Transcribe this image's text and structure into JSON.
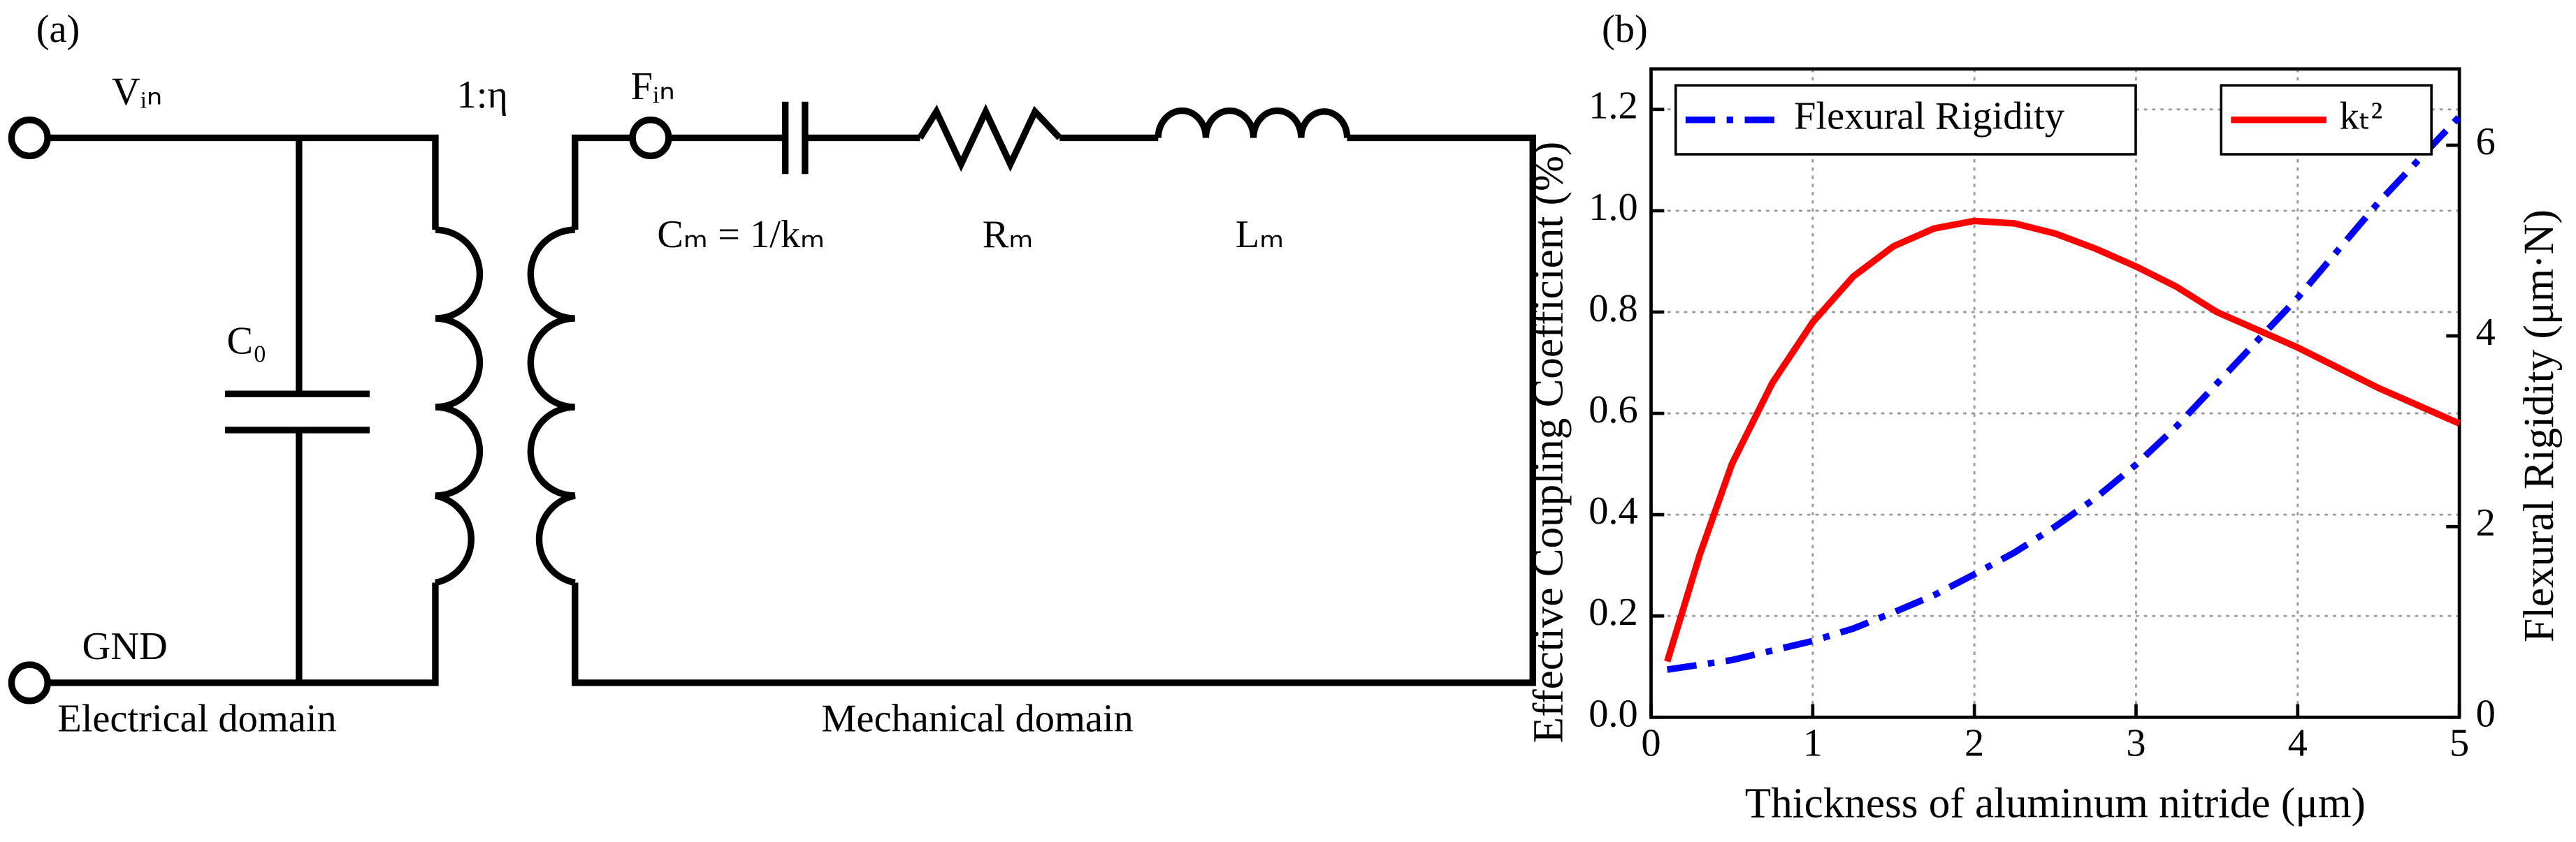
{
  "panel_a": {
    "label": "(a)",
    "v_in": "Vᵢₙ",
    "ratio": "1:η",
    "f_in": "Fᵢₙ",
    "c0": "C₀",
    "cm": "Cₘ = 1/kₘ",
    "rm": "Rₘ",
    "lm": "Lₘ",
    "gnd": "GND",
    "electrical": "Electrical domain",
    "mechanical": "Mechanical domain"
  },
  "chart_data": {
    "type": "line",
    "panel_label": "(b)",
    "x_label": "Thickness of aluminum nitride (μm)",
    "y_label": "Effective Coupling Coefficient (%)",
    "y2_label": "Flexural Rigidity (μm·N)",
    "x": [
      0.1,
      0.3,
      0.5,
      0.75,
      1,
      1.25,
      1.5,
      1.75,
      2,
      2.25,
      2.5,
      2.75,
      3,
      3.25,
      3.5,
      3.75,
      4,
      4.25,
      4.5,
      4.75,
      5
    ],
    "series": [
      {
        "name": "Flexural Rigidity",
        "color": "#0000ff",
        "linestyle": "dashdot",
        "axis": "y2",
        "values": [
          0.5,
          0.55,
          0.6,
          0.7,
          0.8,
          0.93,
          1.1,
          1.28,
          1.5,
          1.73,
          2.0,
          2.3,
          2.65,
          3.05,
          3.5,
          3.95,
          4.4,
          4.9,
          5.4,
          5.85,
          6.3
        ]
      },
      {
        "name": "kₜ²",
        "color": "#ff0000",
        "linestyle": "solid",
        "values": [
          0.11,
          0.32,
          0.5,
          0.66,
          0.78,
          0.87,
          0.93,
          0.965,
          0.98,
          0.975,
          0.955,
          0.925,
          0.89,
          0.85,
          0.8,
          0.765,
          0.73,
          0.69,
          0.65,
          0.615,
          0.58
        ]
      }
    ],
    "xlim": [
      0,
      5
    ],
    "xticks": [
      0,
      1,
      2,
      3,
      4,
      5
    ],
    "ylim": [
      0,
      1.28
    ],
    "yticks": [
      {
        "value": 0,
        "label": "0.0"
      },
      0.2,
      0.4,
      0.6,
      0.8,
      {
        "value": 1,
        "label": "1.0"
      },
      1.2
    ],
    "y2lim": [
      0,
      6.8
    ],
    "y2ticks": [
      0,
      2,
      4,
      6
    ],
    "grid": true
  }
}
